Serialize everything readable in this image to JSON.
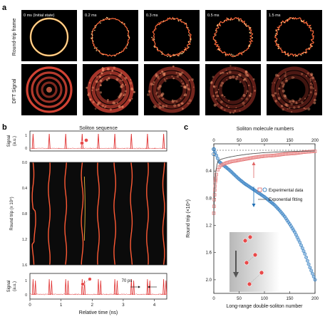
{
  "panel_a": {
    "label": "a",
    "row_labels": [
      "Round-trip frame",
      "DFT Signal"
    ],
    "frames": [
      {
        "time": "0 ms (Initial state)",
        "jag": 0.0,
        "dft_brightness": 1.0
      },
      {
        "time": "0.2 ms",
        "jag": 0.35,
        "dft_brightness": 0.8
      },
      {
        "time": "0.3 ms",
        "jag": 0.6,
        "dft_brightness": 0.55
      },
      {
        "time": "0.5 ms",
        "jag": 0.7,
        "dft_brightness": 0.45
      },
      {
        "time": "1.5 ms",
        "jag": 0.7,
        "dft_brightness": 0.42
      }
    ],
    "colors": {
      "ring": "#ffb25a",
      "dft": "#e84a3a",
      "background": "#000000"
    }
  },
  "panel_b": {
    "label": "b",
    "title": "Soliton sequence",
    "top_signal": {
      "ylabel": "Signal\n(a.u.)",
      "yticks": [
        "0",
        "1"
      ],
      "peak_times_ns": [
        0.1,
        0.62,
        1.15,
        1.68,
        2.2,
        2.73,
        3.26,
        3.78,
        4.3
      ]
    },
    "waterfall": {
      "ylabel": "Round trip (x 10⁴)",
      "yticks": [
        "0.0",
        "0.4",
        "0.8",
        "1.2",
        "1.6"
      ],
      "ylim": [
        0,
        1.6
      ],
      "traces_x_ns": [
        0.1,
        0.62,
        1.15,
        1.68,
        2.2,
        2.73,
        3.26,
        3.78,
        4.3
      ]
    },
    "bottom_signal": {
      "ylabel": "Signal\n(a.u.)",
      "yticks": [
        "0",
        "1"
      ],
      "annotation": "70 ps"
    },
    "xlabel": "Relative time (ns)",
    "xticks": [
      "0",
      "1",
      "2",
      "3",
      "4"
    ],
    "xlim": [
      0,
      4.4
    ],
    "colors": {
      "trace": "#e03030",
      "waterfall_bg": "#0b0b0b",
      "waterfall_line": "#ff5a35"
    }
  },
  "chart_data": {
    "type": "scatter",
    "title": "",
    "top_axis_label": "Soliton molecule numbers",
    "xlabel": "Long-range double-soliton number",
    "ylabel": "Round trip (×10⁴)",
    "xlim": [
      0,
      200
    ],
    "ylim": [
      2.2,
      0.0
    ],
    "xticks": [
      0,
      50,
      100,
      150,
      200
    ],
    "top_xticks": [
      0,
      50,
      100,
      150,
      200
    ],
    "yticks": [
      0.4,
      0.8,
      1.2,
      1.6,
      2.0
    ],
    "legend": [
      "Experimental data",
      "Exponential fitting"
    ],
    "legend_position": "middle-right",
    "series": [
      {
        "name": "Experimental data",
        "axis": "bottom",
        "marker": "circle",
        "x": [
          0,
          10,
          20,
          30,
          40,
          50,
          60,
          70,
          80,
          90,
          100,
          110,
          120,
          130,
          140,
          150,
          160,
          170,
          180,
          190,
          200
        ],
        "y": [
          0.08,
          0.26,
          0.32,
          0.38,
          0.45,
          0.52,
          0.58,
          0.63,
          0.68,
          0.73,
          0.78,
          0.84,
          0.9,
          0.98,
          1.07,
          1.18,
          1.3,
          1.45,
          1.62,
          1.82,
          2.0
        ]
      },
      {
        "name": "Experimental data",
        "axis": "top",
        "marker": "square",
        "x": [
          0,
          1,
          2,
          3,
          5,
          8,
          12,
          18,
          25,
          35,
          50,
          65,
          80,
          100,
          120,
          140,
          160,
          180,
          200
        ],
        "y": [
          1.02,
          0.82,
          0.68,
          0.56,
          0.45,
          0.38,
          0.33,
          0.3,
          0.28,
          0.26,
          0.24,
          0.22,
          0.2,
          0.18,
          0.17,
          0.15,
          0.14,
          0.12,
          0.11
        ]
      }
    ],
    "colors": {
      "circles": "#1f6fb4",
      "squares": "#e06666",
      "fit": "#555555"
    }
  }
}
